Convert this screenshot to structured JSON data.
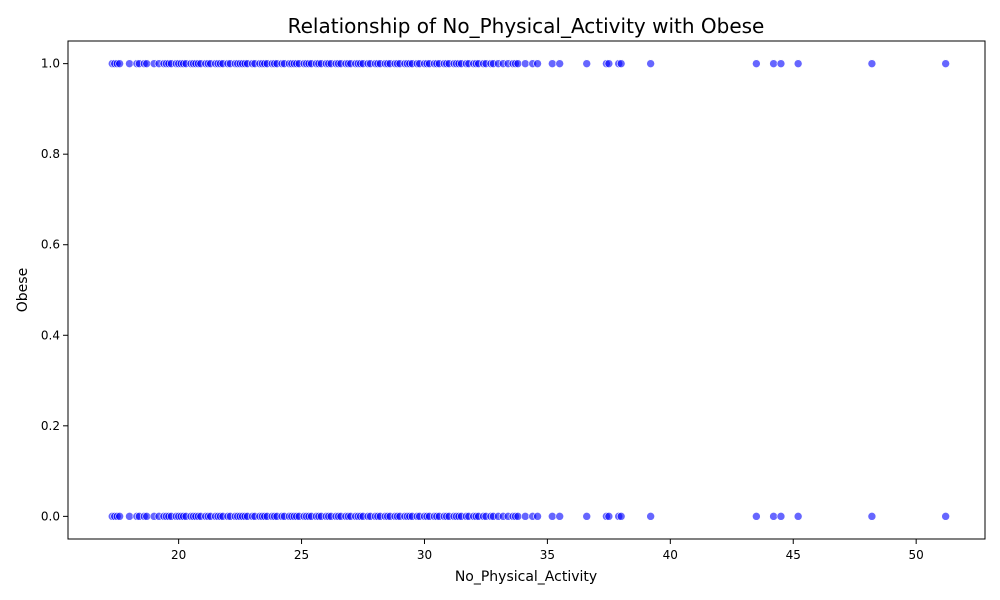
{
  "chart_data": {
    "type": "scatter",
    "title": "Relationship of No_Physical_Activity with Obese",
    "xlabel": "No_Physical_Activity",
    "ylabel": "Obese",
    "xlim": [
      15.5,
      52.8
    ],
    "ylim": [
      -0.05,
      1.05
    ],
    "xticks": [
      20,
      25,
      30,
      35,
      40,
      45,
      50
    ],
    "yticks": [
      0.0,
      0.2,
      0.4,
      0.6,
      0.8,
      1.0
    ],
    "xtick_labels": [
      "20",
      "25",
      "30",
      "35",
      "40",
      "45",
      "50"
    ],
    "ytick_labels": [
      "0.0",
      "0.2",
      "0.4",
      "0.6",
      "0.8",
      "1.0"
    ],
    "grid": false,
    "legend": "none",
    "marker_color": "#0000ff",
    "marker_opacity": 0.6,
    "series": [
      {
        "x": [
          17.3,
          17.4,
          17.5,
          17.6,
          18.0,
          18.3,
          18.4,
          18.6,
          18.7,
          19.0,
          19.2,
          19.4,
          19.5,
          19.6,
          19.7,
          19.9,
          20.0,
          20.1,
          20.2,
          20.3,
          20.5,
          20.6,
          20.7,
          20.8,
          20.9,
          21.1,
          21.2,
          21.3,
          21.5,
          21.6,
          21.7,
          21.8,
          22.0,
          22.1,
          22.3,
          22.4,
          22.5,
          22.6,
          22.7,
          22.8,
          23.0,
          23.1,
          23.3,
          23.4,
          23.5,
          23.6,
          23.8,
          23.9,
          24.0,
          24.2,
          24.3,
          24.5,
          24.6,
          24.7,
          24.8,
          24.9,
          25.1,
          25.2,
          25.3,
          25.4,
          25.6,
          25.7,
          25.8,
          26.0,
          26.1,
          26.2,
          26.4,
          26.5,
          26.6,
          26.8,
          26.9,
          27.0,
          27.2,
          27.3,
          27.4,
          27.5,
          27.7,
          27.8,
          28.0,
          28.1,
          28.2,
          28.4,
          28.5,
          28.6,
          28.8,
          28.9,
          29.0,
          29.2,
          29.3,
          29.4,
          29.5,
          29.7,
          29.8,
          30.0,
          30.1,
          30.2,
          30.4,
          30.5,
          30.6,
          30.8,
          30.9,
          31.0,
          31.2,
          31.3,
          31.4,
          31.5,
          31.7,
          31.8,
          32.0,
          32.1,
          32.2,
          32.4,
          32.5,
          32.7,
          32.8,
          33.0,
          33.2,
          33.4,
          33.6,
          33.7,
          33.8,
          34.1,
          34.4,
          34.6,
          35.2,
          35.5,
          36.6,
          37.4,
          37.5,
          37.9,
          38.0,
          39.2,
          43.5,
          44.2,
          44.5,
          45.2,
          48.2,
          51.2
        ],
        "y": [
          1,
          1,
          1,
          1,
          1,
          1,
          1,
          1,
          1,
          1,
          1,
          1,
          1,
          1,
          1,
          1,
          1,
          1,
          1,
          1,
          1,
          1,
          1,
          1,
          1,
          1,
          1,
          1,
          1,
          1,
          1,
          1,
          1,
          1,
          1,
          1,
          1,
          1,
          1,
          1,
          1,
          1,
          1,
          1,
          1,
          1,
          1,
          1,
          1,
          1,
          1,
          1,
          1,
          1,
          1,
          1,
          1,
          1,
          1,
          1,
          1,
          1,
          1,
          1,
          1,
          1,
          1,
          1,
          1,
          1,
          1,
          1,
          1,
          1,
          1,
          1,
          1,
          1,
          1,
          1,
          1,
          1,
          1,
          1,
          1,
          1,
          1,
          1,
          1,
          1,
          1,
          1,
          1,
          1,
          1,
          1,
          1,
          1,
          1,
          1,
          1,
          1,
          1,
          1,
          1,
          1,
          1,
          1,
          1,
          1,
          1,
          1,
          1,
          1,
          1,
          1,
          1,
          1,
          1,
          1,
          1,
          1,
          1,
          1,
          1,
          1,
          1,
          1,
          1,
          1,
          1,
          1,
          1,
          1,
          1,
          1,
          1,
          1
        ]
      },
      {
        "x": [
          17.3,
          17.4,
          17.5,
          17.6,
          18.0,
          18.3,
          18.4,
          18.6,
          18.7,
          19.0,
          19.2,
          19.4,
          19.5,
          19.6,
          19.7,
          19.9,
          20.0,
          20.1,
          20.2,
          20.3,
          20.5,
          20.6,
          20.7,
          20.8,
          20.9,
          21.1,
          21.2,
          21.3,
          21.5,
          21.6,
          21.7,
          21.8,
          22.0,
          22.1,
          22.3,
          22.4,
          22.5,
          22.6,
          22.7,
          22.8,
          23.0,
          23.1,
          23.3,
          23.4,
          23.5,
          23.6,
          23.8,
          23.9,
          24.0,
          24.2,
          24.3,
          24.5,
          24.6,
          24.7,
          24.8,
          24.9,
          25.1,
          25.2,
          25.3,
          25.4,
          25.6,
          25.7,
          25.8,
          26.0,
          26.1,
          26.2,
          26.4,
          26.5,
          26.6,
          26.8,
          26.9,
          27.0,
          27.2,
          27.3,
          27.4,
          27.5,
          27.7,
          27.8,
          28.0,
          28.1,
          28.2,
          28.4,
          28.5,
          28.6,
          28.8,
          28.9,
          29.0,
          29.2,
          29.3,
          29.4,
          29.5,
          29.7,
          29.8,
          30.0,
          30.1,
          30.2,
          30.4,
          30.5,
          30.6,
          30.8,
          30.9,
          31.0,
          31.2,
          31.3,
          31.4,
          31.5,
          31.7,
          31.8,
          32.0,
          32.1,
          32.2,
          32.4,
          32.5,
          32.7,
          32.8,
          33.0,
          33.2,
          33.4,
          33.6,
          33.7,
          33.8,
          34.1,
          34.4,
          34.6,
          35.2,
          35.5,
          36.6,
          37.4,
          37.5,
          37.9,
          38.0,
          39.2,
          43.5,
          44.2,
          44.5,
          45.2,
          48.2,
          51.2
        ],
        "y": [
          0,
          0,
          0,
          0,
          0,
          0,
          0,
          0,
          0,
          0,
          0,
          0,
          0,
          0,
          0,
          0,
          0,
          0,
          0,
          0,
          0,
          0,
          0,
          0,
          0,
          0,
          0,
          0,
          0,
          0,
          0,
          0,
          0,
          0,
          0,
          0,
          0,
          0,
          0,
          0,
          0,
          0,
          0,
          0,
          0,
          0,
          0,
          0,
          0,
          0,
          0,
          0,
          0,
          0,
          0,
          0,
          0,
          0,
          0,
          0,
          0,
          0,
          0,
          0,
          0,
          0,
          0,
          0,
          0,
          0,
          0,
          0,
          0,
          0,
          0,
          0,
          0,
          0,
          0,
          0,
          0,
          0,
          0,
          0,
          0,
          0,
          0,
          0,
          0,
          0,
          0,
          0,
          0,
          0,
          0,
          0,
          0,
          0,
          0,
          0,
          0,
          0,
          0,
          0,
          0,
          0,
          0,
          0,
          0,
          0,
          0,
          0,
          0,
          0,
          0,
          0,
          0,
          0,
          0,
          0,
          0,
          0,
          0,
          0,
          0,
          0,
          0,
          0,
          0,
          0,
          0,
          0,
          0,
          0,
          0,
          0,
          0,
          0
        ]
      }
    ]
  }
}
